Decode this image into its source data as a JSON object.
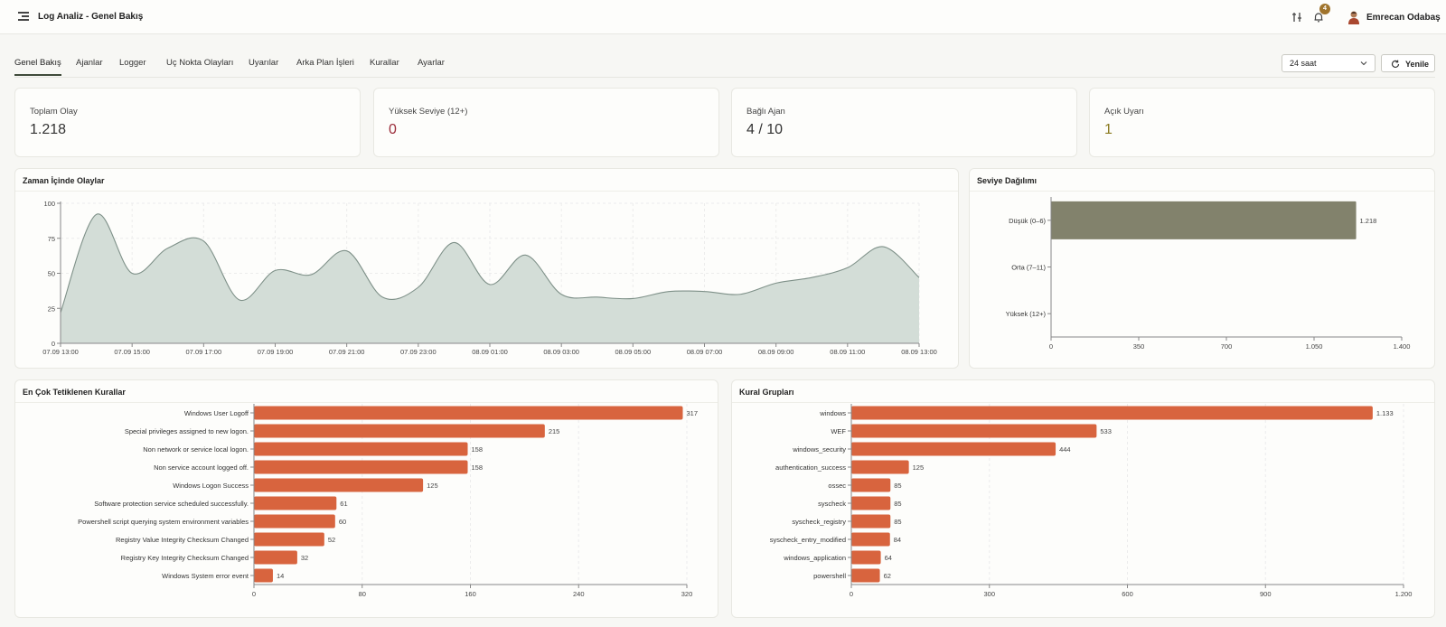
{
  "header": {
    "title": "Log Analiz - Genel Bakış",
    "notification_count": "4",
    "user_name": "Emrecan Odabaş"
  },
  "tabs": [
    {
      "label": "Genel Bakış",
      "active": true
    },
    {
      "label": "Ajanlar"
    },
    {
      "label": "Logger"
    },
    {
      "label": "Uç Nokta Olayları"
    },
    {
      "label": "Uyarılar"
    },
    {
      "label": "Arka Plan İşleri"
    },
    {
      "label": "Kurallar"
    },
    {
      "label": "Ayarlar"
    }
  ],
  "controls": {
    "range_value": "24 saat",
    "refresh_label": "Yenile"
  },
  "stats": [
    {
      "label": "Toplam Olay",
      "value": "1.218",
      "color": "#333333"
    },
    {
      "label": "Yüksek Seviye (12+)",
      "value": "0",
      "color": "#9b2c3a"
    },
    {
      "label": "Bağlı Ajan",
      "value": "4 / 10",
      "color": "#333333"
    },
    {
      "label": "Açık Uyarı",
      "value": "1",
      "color": "#8a7a1e"
    }
  ],
  "colors": {
    "area_fill": "#d3ddd7",
    "area_line": "#7e9088",
    "level_bar": "#82826c",
    "rule_bar": "#d8643e"
  },
  "chart_data": [
    {
      "type": "area",
      "title": "Zaman İçinde Olaylar",
      "x": [
        "07.09 13:00",
        "07.09 14:00",
        "07.09 15:00",
        "07.09 16:00",
        "07.09 17:00",
        "07.09 18:00",
        "07.09 19:00",
        "07.09 20:00",
        "07.09 21:00",
        "07.09 22:00",
        "07.09 23:00",
        "08.09 00:00",
        "08.09 01:00",
        "08.09 02:00",
        "08.09 03:00",
        "08.09 04:00",
        "08.09 05:00",
        "08.09 06:00",
        "08.09 07:00",
        "08.09 08:00",
        "08.09 09:00",
        "08.09 10:00",
        "08.09 11:00",
        "08.09 12:00",
        "08.09 13:00"
      ],
      "values": [
        22,
        92,
        50,
        68,
        73,
        31,
        52,
        49,
        66,
        33,
        40,
        72,
        42,
        63,
        35,
        33,
        32,
        37,
        37,
        35,
        43,
        47,
        54,
        69,
        47
      ],
      "x_tick_labels": [
        "07.09 13:00",
        "07.09 15:00",
        "07.09 17:00",
        "07.09 19:00",
        "07.09 21:00",
        "07.09 23:00",
        "08.09 01:00",
        "08.09 03:00",
        "08.09 05:00",
        "08.09 07:00",
        "08.09 09:00",
        "08.09 11:00",
        "08.09 13:00"
      ],
      "y_ticks": [
        "0",
        "25",
        "50",
        "75",
        "100"
      ],
      "ylim": [
        0,
        100
      ],
      "grid": true
    },
    {
      "type": "bar",
      "orientation": "horizontal",
      "title": "Seviye Dağılımı",
      "categories": [
        "Düşük (0–6)",
        "Orta (7–11)",
        "Yüksek (12+)"
      ],
      "values": [
        1218,
        0,
        0
      ],
      "value_labels": [
        "1.218",
        "",
        ""
      ],
      "x_ticks": [
        "0",
        "350",
        "700",
        "1.050",
        "1.400"
      ],
      "xlim": [
        0,
        1400
      ]
    },
    {
      "type": "bar",
      "orientation": "horizontal",
      "title": "En Çok Tetiklenen Kurallar",
      "categories": [
        "Windows User Logoff",
        "Special privileges assigned to new logon.",
        "Non network or service local logon.",
        "Non service account logged off.",
        "Windows Logon Success",
        "Software protection service scheduled successfully.",
        "Powershell script querying system environment variables",
        "Registry Value Integrity Checksum Changed",
        "Registry Key Integrity Checksum Changed",
        "Windows System error event"
      ],
      "values": [
        317,
        215,
        158,
        158,
        125,
        61,
        60,
        52,
        32,
        14
      ],
      "value_labels": [
        "317",
        "215",
        "158",
        "158",
        "125",
        "61",
        "60",
        "52",
        "32",
        "14"
      ],
      "x_ticks": [
        "0",
        "80",
        "160",
        "240",
        "320"
      ],
      "xlim": [
        0,
        320
      ],
      "grid": true
    },
    {
      "type": "bar",
      "orientation": "horizontal",
      "title": "Kural Grupları",
      "categories": [
        "windows",
        "WEF",
        "windows_security",
        "authentication_success",
        "ossec",
        "syscheck",
        "syscheck_registry",
        "syscheck_entry_modified",
        "windows_application",
        "powershell"
      ],
      "values": [
        1133,
        533,
        444,
        125,
        85,
        85,
        85,
        84,
        64,
        62
      ],
      "value_labels": [
        "1.133",
        "533",
        "444",
        "125",
        "85",
        "85",
        "85",
        "84",
        "64",
        "62"
      ],
      "x_ticks": [
        "0",
        "300",
        "600",
        "900",
        "1.200"
      ],
      "xlim": [
        0,
        1200
      ],
      "grid": true
    }
  ]
}
